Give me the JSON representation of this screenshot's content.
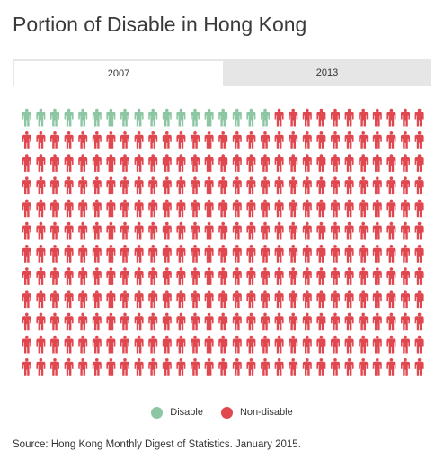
{
  "title": "Portion of Disable in Hong Kong",
  "tabs": [
    {
      "label": "2007",
      "active": true
    },
    {
      "label": "2013",
      "active": false
    }
  ],
  "legend": [
    {
      "label": "Disable",
      "color": "#8cc6a3"
    },
    {
      "label": "Non-disable",
      "color": "#e0474f"
    }
  ],
  "source": "Source: Hong Kong Monthly Digest of Statistics. January 2015.",
  "icon": "person-icon",
  "chart_data": {
    "type": "pictograph",
    "year": "2007",
    "columns": 29,
    "rows": 12,
    "series": [
      {
        "name": "Disable",
        "count": 18,
        "color": "#8cc6a3"
      },
      {
        "name": "Non-disable",
        "count": 330,
        "color": "#e0474f"
      }
    ]
  }
}
